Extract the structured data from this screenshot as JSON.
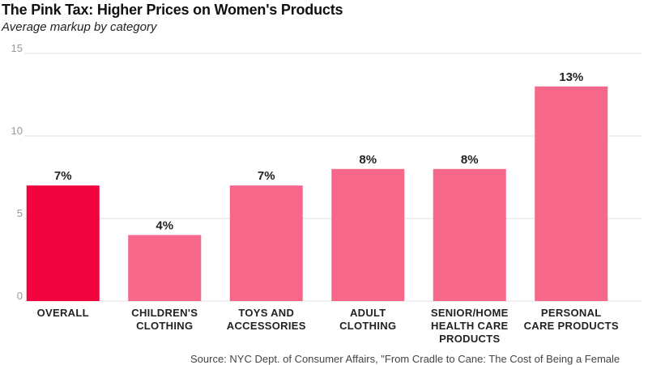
{
  "chart_data": {
    "type": "bar",
    "title": "The Pink Tax: Higher Prices on Women's Products",
    "subtitle": "Average markup by category",
    "categories": [
      [
        "OVERALL"
      ],
      [
        "CHILDREN'S",
        "CLOTHING"
      ],
      [
        "TOYS AND",
        "ACCESSORIES"
      ],
      [
        "ADULT",
        "CLOTHING"
      ],
      [
        "SENIOR/HOME",
        "HEALTH CARE",
        "PRODUCTS"
      ],
      [
        "PERSONAL",
        "CARE PRODUCTS"
      ]
    ],
    "values": [
      7,
      4,
      7,
      8,
      8,
      13
    ],
    "value_labels": [
      "7%",
      "4%",
      "7%",
      "8%",
      "8%",
      "13%"
    ],
    "ylim": [
      0,
      15
    ],
    "yticks": [
      0,
      5,
      10,
      15
    ],
    "grid": true,
    "legend": "none",
    "colors": {
      "highlight": "#f0033f",
      "bar": "#f6678a",
      "grid": "#e2e2e2"
    },
    "highlight_index": 0,
    "source": "Source: NYC Dept. of Consumer Affairs, \"From Cradle to Cane: The Cost of Being a Female"
  }
}
